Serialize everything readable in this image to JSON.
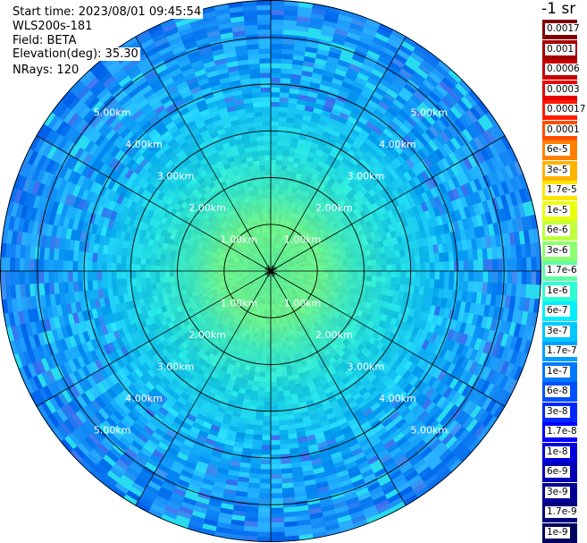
{
  "header": {
    "start_time": "Start time: 2023/08/01 09:45:54",
    "instrument": "WLS200s-181",
    "field": "Field: BETA",
    "elevation": "Elevation(deg): 35.30",
    "nrays": "NRays: 120"
  },
  "range_rings": {
    "unit": "km",
    "labels": [
      "1.00km",
      "2.00km",
      "3.00km",
      "4.00km",
      "5.00km"
    ]
  },
  "colorbar": {
    "units_label": "-1 sr",
    "entries": [
      {
        "label": "0.0017",
        "color": "#800000"
      },
      {
        "label": "0.001",
        "color": "#a50000"
      },
      {
        "label": "0.0006",
        "color": "#c80000"
      },
      {
        "label": "0.0003",
        "color": "#e60000"
      },
      {
        "label": "0.00017",
        "color": "#ff1a00"
      },
      {
        "label": "0.0001",
        "color": "#ff4d00"
      },
      {
        "label": "6e-5",
        "color": "#ff8000"
      },
      {
        "label": "3e-5",
        "color": "#ffb300"
      },
      {
        "label": "1.7e-5",
        "color": "#ffe600"
      },
      {
        "label": "1e-5",
        "color": "#eaff0c"
      },
      {
        "label": "6e-6",
        "color": "#bfff3f"
      },
      {
        "label": "3e-6",
        "color": "#8cff73"
      },
      {
        "label": "1.7e-6",
        "color": "#5cffa3"
      },
      {
        "label": "1e-6",
        "color": "#2cffd3"
      },
      {
        "label": "6e-7",
        "color": "#00f0ff"
      },
      {
        "label": "3e-7",
        "color": "#00c8ff"
      },
      {
        "label": "1.7e-7",
        "color": "#00a0ff"
      },
      {
        "label": "1e-7",
        "color": "#0078ff"
      },
      {
        "label": "6e-8",
        "color": "#0050ff"
      },
      {
        "label": "3e-8",
        "color": "#0028ff"
      },
      {
        "label": "1.7e-8",
        "color": "#0000ff"
      },
      {
        "label": "1e-8",
        "color": "#0000dc"
      },
      {
        "label": "6e-9",
        "color": "#0000b4"
      },
      {
        "label": "3e-9",
        "color": "#000096"
      },
      {
        "label": "1.7e-9",
        "color": "#00007a"
      },
      {
        "label": "1e-9",
        "color": "#000060"
      }
    ]
  }
}
